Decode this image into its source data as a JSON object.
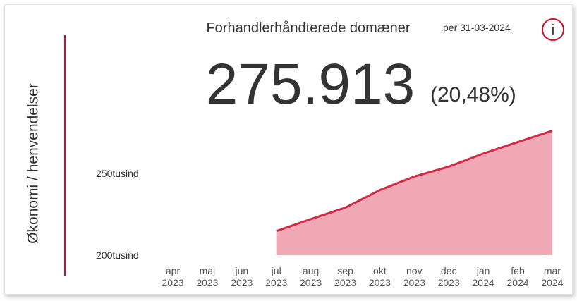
{
  "side_label": "Økonomi / henvendelser",
  "info_icon": "i",
  "chart_data": {
    "type": "area",
    "title": "Forhandlerhåndterede domæner",
    "subtitle": "per 31-03-2024",
    "kpi_value": "275.913",
    "kpi_change": "(20,48%)",
    "categories": [
      "apr 2023",
      "maj 2023",
      "jun 2023",
      "jul 2023",
      "aug 2023",
      "sep 2023",
      "okt 2023",
      "nov 2023",
      "dec 2023",
      "jan 2024",
      "feb 2024",
      "mar 2024"
    ],
    "values": [
      null,
      null,
      null,
      214700,
      222000,
      229000,
      239700,
      248000,
      254000,
      262000,
      269000,
      275913
    ],
    "color": "#d42a45",
    "fill": "#f0a9b4",
    "ylim": [
      200000,
      280000
    ],
    "yticks": [
      {
        "value": 200000,
        "label": "200tusind"
      },
      {
        "value": 250000,
        "label": "250tusind"
      }
    ]
  }
}
